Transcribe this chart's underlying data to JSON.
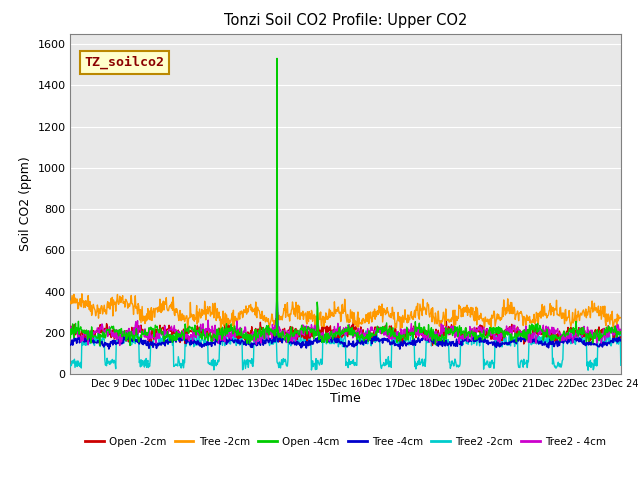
{
  "title": "Tonzi Soil CO2 Profile: Upper CO2",
  "ylabel": "Soil CO2 (ppm)",
  "xlabel": "Time",
  "watermark": "TZ_soilco2",
  "ylim": [
    0,
    1650
  ],
  "yticks": [
    0,
    200,
    400,
    600,
    800,
    1000,
    1200,
    1400,
    1600
  ],
  "plot_bg": "#e8e8e8",
  "fig_bg": "#ffffff",
  "series": {
    "Open_2cm": {
      "color": "#cc0000",
      "lw": 1.0
    },
    "Tree_2cm": {
      "color": "#ff9900",
      "lw": 1.0
    },
    "Open_4cm": {
      "color": "#00cc00",
      "lw": 1.0
    },
    "Tree_4cm": {
      "color": "#0000cc",
      "lw": 1.2
    },
    "Tree2_2cm": {
      "color": "#00cccc",
      "lw": 1.0
    },
    "Tree2_4cm": {
      "color": "#cc00cc",
      "lw": 1.0
    }
  },
  "legend_labels": [
    "Open -2cm",
    "Tree -2cm",
    "Open -4cm",
    "Tree -4cm",
    "Tree2 -2cm",
    "Tree2 - 4cm"
  ],
  "legend_colors": [
    "#cc0000",
    "#ff9900",
    "#00cc00",
    "#0000cc",
    "#00cccc",
    "#cc00cc"
  ],
  "n_points": 960,
  "spike_index": 360,
  "spike_value": 1530,
  "xstart_day": 8,
  "xend_day": 24,
  "tick_days": [
    9,
    10,
    11,
    12,
    13,
    14,
    15,
    16,
    17,
    18,
    19,
    20,
    21,
    22,
    23,
    24
  ]
}
